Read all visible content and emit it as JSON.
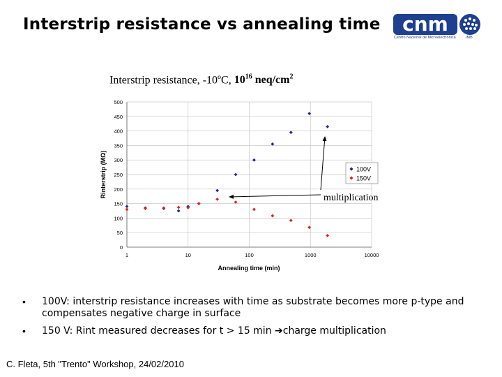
{
  "slide": {
    "title": "Interstrip resistance vs annealing time",
    "logo_text": "cnm",
    "logo_sub": "Centro Nacional de Microelectrònica",
    "logo_sub2": "IMB"
  },
  "chart_heading": {
    "prefix": "Interstrip resistance, -10ºC, ",
    "fluence_base": "10",
    "fluence_exp": "16",
    "fluence_unit": " neq/cm",
    "unit_exp": "2"
  },
  "chart_data": {
    "type": "scatter",
    "xlabel": "Annealing time (min)",
    "ylabel": "Rinterstrip (MΩ)",
    "xscale": "log",
    "xlim": [
      1,
      10000
    ],
    "ylim": [
      0,
      500
    ],
    "xticks": [
      "1",
      "10",
      "100",
      "1000",
      "10000"
    ],
    "yticks": [
      "0",
      "50",
      "100",
      "150",
      "200",
      "250",
      "300",
      "350",
      "400",
      "450",
      "500"
    ],
    "grid": true,
    "legend_position": "right",
    "series": [
      {
        "name": "100V",
        "color": "#1f2a8c",
        "marker": "diamond",
        "points": [
          [
            1,
            140
          ],
          [
            2,
            135
          ],
          [
            4,
            133
          ],
          [
            7,
            125
          ],
          [
            10,
            140
          ],
          [
            15,
            150
          ],
          [
            30,
            195
          ],
          [
            60,
            250
          ],
          [
            120,
            300
          ],
          [
            240,
            355
          ],
          [
            480,
            395
          ],
          [
            960,
            460
          ],
          [
            1900,
            415
          ]
        ]
      },
      {
        "name": "150V",
        "color": "#e02020",
        "marker": "diamond",
        "points": [
          [
            1,
            130
          ],
          [
            2,
            133
          ],
          [
            4,
            135
          ],
          [
            7,
            137
          ],
          [
            10,
            136
          ],
          [
            15,
            150
          ],
          [
            30,
            165
          ],
          [
            60,
            155
          ],
          [
            120,
            130
          ],
          [
            240,
            108
          ],
          [
            480,
            92
          ],
          [
            960,
            68
          ],
          [
            1900,
            40
          ]
        ]
      }
    ],
    "annotation": "multiplication"
  },
  "bullets": [
    "100V: interstrip resistance increases with time as substrate becomes more p-type and compensates negative charge in surface",
    "150 V: Rint measured decreases for t > 15 min ",
    "charge multiplication"
  ],
  "footer": "C. Fleta, 5th \"Trento\" Workshop, 24/02/2010"
}
